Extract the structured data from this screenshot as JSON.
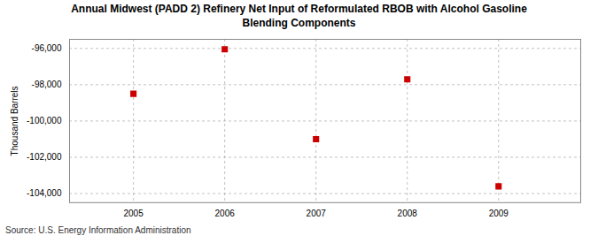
{
  "chart_data": {
    "type": "scatter",
    "title": "Annual Midwest (PADD 2) Refinery Net Input of Reformulated RBOB with Alcohol Gasoline\nBlending Components",
    "ylabel": "Thousand Barrels",
    "caption": "Source: U.S. Energy Information Administration",
    "x": [
      2005,
      2006,
      2007,
      2008,
      2009
    ],
    "values": [
      -98500,
      -96050,
      -101000,
      -97700,
      -103600
    ],
    "color": "#cc0000",
    "marker": "square",
    "xlim": [
      2004.3,
      2009.9
    ],
    "xticks": [
      2005,
      2006,
      2007,
      2008,
      2009
    ],
    "ylim": [
      -104500,
      -95500
    ],
    "yticks": [
      {
        "value": -96000,
        "label": "-96,000"
      },
      {
        "value": -98000,
        "label": "-98,000"
      },
      {
        "value": -100000,
        "label": "-100,000"
      },
      {
        "value": -102000,
        "label": "-102,000"
      },
      {
        "value": -104000,
        "label": "-104,000"
      }
    ],
    "grid": true
  }
}
